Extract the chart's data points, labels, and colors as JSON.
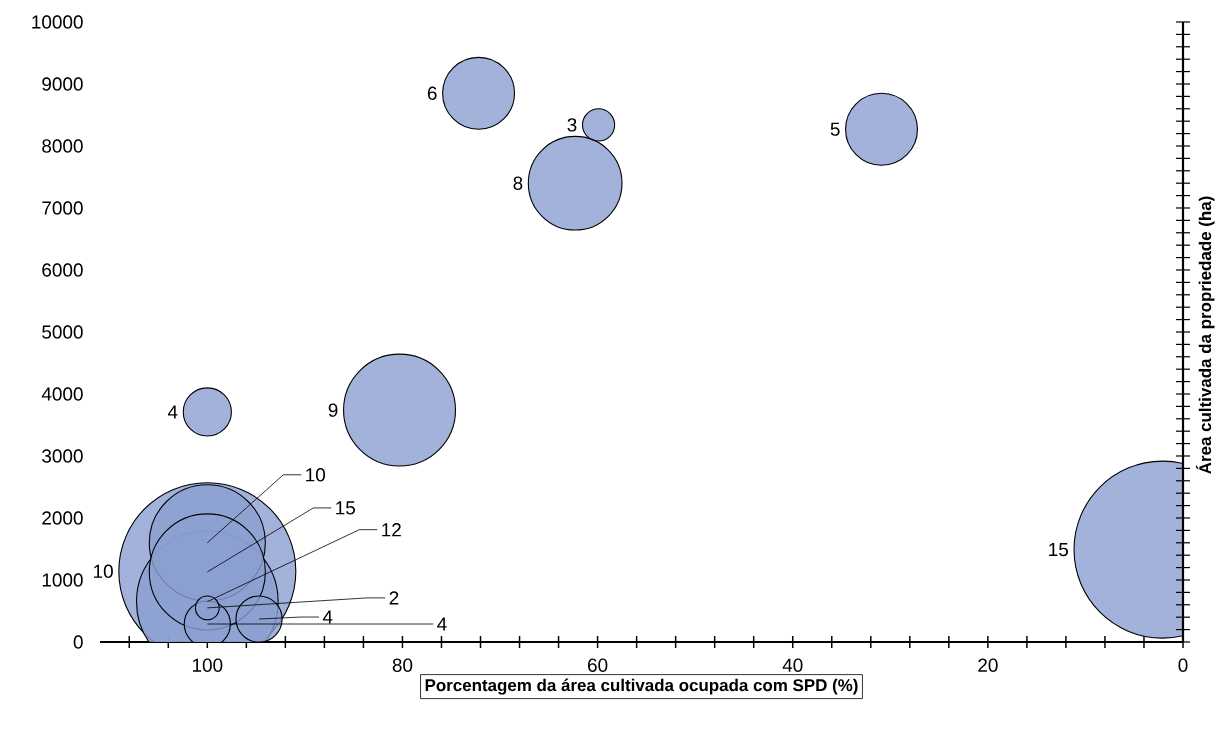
{
  "chart_data": {
    "type": "bubble",
    "xlabel": "Porcentagem da área cultivada ocupada com SPD (%)",
    "ylabel": "Área cultivada da propriedade (ha)",
    "color": "#8b9fd1",
    "x": [
      72.2,
      59.9,
      62.3,
      30.9,
      100,
      80.3,
      2.1,
      100,
      100,
      100,
      100,
      94.7,
      100,
      100
    ],
    "values": [
      8850,
      8340,
      7400,
      8270,
      3710,
      3740,
      1490,
      1140,
      650,
      1600,
      1130,
      370,
      290,
      550
    ],
    "sizes": [
      0.165,
      0.033,
      0.28,
      0.165,
      0.074,
      0.4,
      1,
      1,
      0.64,
      0.43,
      0.43,
      0.068,
      0.068,
      0.018
    ],
    "annotations": [
      {
        "text": "6",
        "x": 72.2,
        "y": 8850
      },
      {
        "text": "3",
        "x": 59.9,
        "y": 8340
      },
      {
        "text": "8",
        "x": 62.3,
        "y": 7400
      },
      {
        "text": "5",
        "x": 30.9,
        "y": 8270
      },
      {
        "text": "4",
        "x": 100,
        "y": 3710
      },
      "9",
      "15",
      "10",
      {
        "text": "12",
        "x": 100,
        "y": 650
      },
      {
        "text": "10",
        "x": 100,
        "y": 1600
      },
      {
        "text": "15",
        "x": 100,
        "y": 1130
      },
      {
        "text": "4",
        "x": 94.7,
        "y": 370
      },
      {
        "text": "4",
        "x": 100,
        "y": 290
      },
      {
        "text": "2",
        "x": 100,
        "y": 550
      }
    ],
    "xlim": [
      111,
      0
    ],
    "ylim": [
      0,
      10000
    ],
    "xticks": [
      0,
      {
        "value": 4,
        "label": null
      },
      {
        "value": 8,
        "label": null
      },
      {
        "value": 12,
        "label": null
      },
      {
        "value": 16,
        "label": null
      },
      20,
      {
        "value": 24,
        "label": null
      },
      {
        "value": 28,
        "label": null
      },
      {
        "value": 32,
        "label": null
      },
      {
        "value": 36,
        "label": null
      },
      40,
      {
        "value": 44,
        "label": null
      },
      {
        "value": 48,
        "label": null
      },
      {
        "value": 52,
        "label": null
      },
      {
        "value": 56,
        "label": null
      },
      60,
      {
        "value": 64,
        "label": null
      },
      {
        "value": 68,
        "label": null
      },
      {
        "value": 72,
        "label": null
      },
      {
        "value": 76,
        "label": null
      },
      80,
      {
        "value": 84,
        "label": null
      },
      {
        "value": 88,
        "label": null
      },
      {
        "value": 92,
        "label": null
      },
      {
        "value": 96,
        "label": null
      },
      100,
      {
        "value": 104,
        "label": null
      },
      {
        "value": 108,
        "label": null
      }
    ],
    "yticks": [
      0,
      {
        "value": 200,
        "label": null
      },
      {
        "value": 400,
        "label": null
      },
      {
        "value": 600,
        "label": null
      },
      {
        "value": 800,
        "label": null
      },
      1000,
      {
        "value": 1200,
        "label": null
      },
      {
        "value": 1400,
        "label": null
      },
      {
        "value": 1600,
        "label": null
      },
      {
        "value": 1800,
        "label": null
      },
      2000,
      {
        "value": 2200,
        "label": null
      },
      {
        "value": 2400,
        "label": null
      },
      {
        "value": 2600,
        "label": null
      },
      {
        "value": 2800,
        "label": null
      },
      3000,
      {
        "value": 3200,
        "label": null
      },
      {
        "value": 3400,
        "label": null
      },
      {
        "value": 3600,
        "label": null
      },
      {
        "value": 3800,
        "label": null
      },
      4000,
      {
        "value": 4200,
        "label": null
      },
      {
        "value": 4400,
        "label": null
      },
      {
        "value": 4600,
        "label": null
      },
      {
        "value": 4800,
        "label": null
      },
      5000,
      {
        "value": 5200,
        "label": null
      },
      {
        "value": 5400,
        "label": null
      },
      {
        "value": 5600,
        "label": null
      },
      {
        "value": 5800,
        "label": null
      },
      6000,
      {
        "value": 6200,
        "label": null
      },
      {
        "value": 6400,
        "label": null
      },
      {
        "value": 6600,
        "label": null
      },
      {
        "value": 6800,
        "label": null
      },
      7000,
      {
        "value": 7200,
        "label": null
      },
      {
        "value": 7400,
        "label": null
      },
      {
        "value": 7600,
        "label": null
      },
      {
        "value": 7800,
        "label": null
      },
      8000,
      {
        "value": 8200,
        "label": null
      },
      {
        "value": 8400,
        "label": null
      },
      {
        "value": 8600,
        "label": null
      },
      {
        "value": 8800,
        "label": null
      },
      9000,
      {
        "value": 9200,
        "label": null
      },
      {
        "value": 9400,
        "label": null
      },
      {
        "value": 9600,
        "label": null
      },
      {
        "value": 9800,
        "label": null
      },
      10000
    ]
  }
}
